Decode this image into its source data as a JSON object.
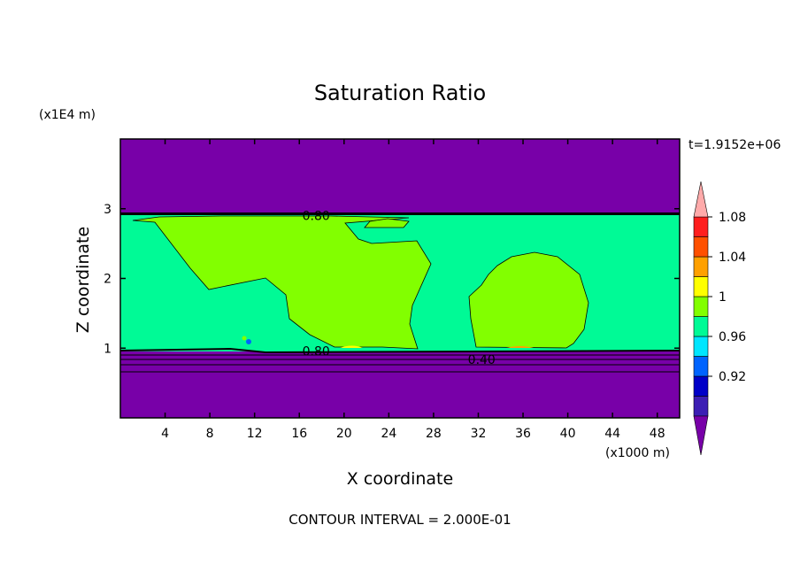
{
  "chart_data": {
    "type": "heatmap",
    "title": "Saturation Ratio",
    "xlabel": "X coordinate",
    "ylabel": "Z coordinate",
    "x_unit_label": "(x1000 m)",
    "y_unit_label": "(x1E4 m)",
    "time_label": "t=1.9152e+06",
    "footer": "CONTOUR INTERVAL = 2.000E-01",
    "xlim": [
      0,
      50
    ],
    "ylim": [
      0,
      4
    ],
    "x_ticks": [
      4,
      8,
      12,
      16,
      20,
      24,
      28,
      32,
      36,
      40,
      44,
      48
    ],
    "y_ticks": [
      1,
      2,
      3
    ],
    "contour_labels": [
      {
        "text": "0.80",
        "x": 17.5,
        "z": 2.9
      },
      {
        "text": "0.80",
        "x": 17.5,
        "z": 0.96
      },
      {
        "text": "0.40",
        "x": 32.3,
        "z": 0.84
      }
    ],
    "colorbar": {
      "levels": [
        0.92,
        0.96,
        1,
        1.04,
        1.08
      ],
      "labels": [
        "0.92",
        "0.96",
        "1",
        "1.04",
        "1.08"
      ],
      "colors": [
        "#7800a8",
        "#3c1eb4",
        "#0000c8",
        "#0064ff",
        "#00e6ff",
        "#00fa96",
        "#82ff00",
        "#ffff00",
        "#ffa000",
        "#ff5000",
        "#ff1e1e",
        "#ffaaaa"
      ],
      "extend": "both"
    },
    "regions": {
      "upper_dry_layer": {
        "z_range": [
          2.9,
          4.0
        ],
        "value": "< 0.92"
      },
      "moist_layer": {
        "z_range": [
          0.98,
          2.9
        ],
        "value": "0.96 - 1"
      },
      "cloud_regions": [
        {
          "x_range": [
            2,
            27
          ],
          "value": "1 - 1.04"
        },
        {
          "x_range": [
            31,
            41
          ],
          "value": "1 - 1.04"
        }
      ],
      "lower_dry_layer": {
        "z_range": [
          0,
          0.98
        ],
        "value": "< 0.92"
      }
    }
  }
}
